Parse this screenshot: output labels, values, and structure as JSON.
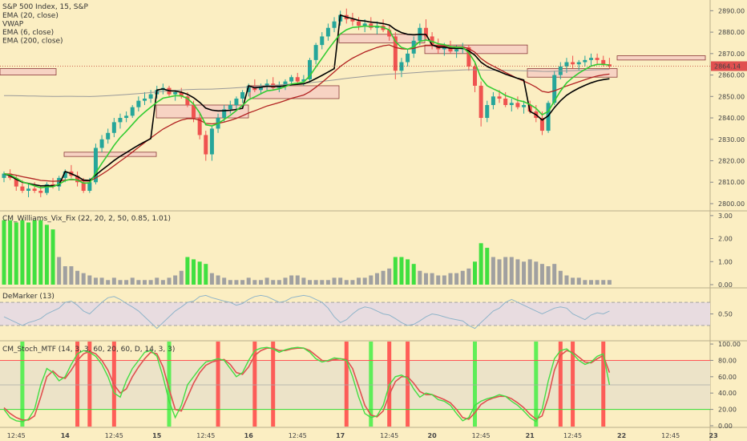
{
  "chart_data": [
    {
      "panel": "price",
      "type": "candlestick",
      "title": "S&P 500 Index, 15, S&P",
      "legend": [
        {
          "label": "EMA (20, close)",
          "color": "#2a9d2a"
        },
        {
          "label": "VWAP",
          "color": "#000000"
        },
        {
          "label": "EMA (6, close)",
          "color": "#3ecf3e"
        },
        {
          "label": "EMA (200, close)",
          "color": "#9a9a9a"
        }
      ],
      "y_ticks": [
        "2890.00",
        "2880.00",
        "2870.00",
        "2860.00",
        "2850.00",
        "2840.00",
        "2830.00",
        "2820.00",
        "2810.00",
        "2800.00"
      ],
      "y_tick_values": [
        2890,
        2880,
        2870,
        2860,
        2850,
        2840,
        2830,
        2820,
        2810,
        2800
      ],
      "ylim": [
        2797,
        2895
      ],
      "last_price": "2864.14",
      "last_price_value": 2864.14,
      "colors": {
        "up": "#26a69a",
        "down": "#ef5350",
        "zone_fill": "#f7d3c3",
        "zone_stroke": "#8a3a3a",
        "ema_slow": "#b22222",
        "ema_fast": "#33cc33",
        "vwap": "#000000",
        "ema200": "#999999"
      },
      "zones": [
        {
          "x0": 0,
          "x1": 70,
          "y0": 2863,
          "y1": 2860
        },
        {
          "x0": 80,
          "x1": 195,
          "y0": 2824,
          "y1": 2822
        },
        {
          "x0": 195,
          "x1": 310,
          "y0": 2846,
          "y1": 2840
        },
        {
          "x0": 312,
          "x1": 423,
          "y0": 2855,
          "y1": 2849
        },
        {
          "x0": 423,
          "x1": 530,
          "y0": 2879,
          "y1": 2875
        },
        {
          "x0": 530,
          "x1": 658,
          "y0": 2874,
          "y1": 2870
        },
        {
          "x0": 658,
          "x1": 770,
          "y0": 2863,
          "y1": 2859
        },
        {
          "x0": 770,
          "x1": 880,
          "y0": 2869,
          "y1": 2867
        }
      ],
      "candles": [
        [
          2812,
          2815,
          2810,
          2814
        ],
        [
          2814,
          2816,
          2811,
          2812
        ],
        [
          2812,
          2813,
          2806,
          2808
        ],
        [
          2808,
          2811,
          2805,
          2806
        ],
        [
          2806,
          2809,
          2803,
          2807
        ],
        [
          2807,
          2810,
          2805,
          2806
        ],
        [
          2806,
          2808,
          2803,
          2805
        ],
        [
          2805,
          2810,
          2804,
          2809
        ],
        [
          2809,
          2812,
          2807,
          2808
        ],
        [
          2808,
          2813,
          2806,
          2812
        ],
        [
          2812,
          2816,
          2810,
          2815
        ],
        [
          2815,
          2818,
          2812,
          2813
        ],
        [
          2813,
          2815,
          2808,
          2810
        ],
        [
          2810,
          2812,
          2805,
          2806
        ],
        [
          2806,
          2812,
          2805,
          2810
        ],
        [
          2810,
          2828,
          2809,
          2826
        ],
        [
          2826,
          2832,
          2824,
          2830
        ],
        [
          2830,
          2835,
          2828,
          2833
        ],
        [
          2833,
          2840,
          2831,
          2838
        ],
        [
          2838,
          2842,
          2835,
          2840
        ],
        [
          2840,
          2843,
          2838,
          2841
        ],
        [
          2841,
          2846,
          2840,
          2845
        ],
        [
          2845,
          2850,
          2843,
          2848
        ],
        [
          2848,
          2852,
          2846,
          2849
        ],
        [
          2849,
          2853,
          2847,
          2851
        ],
        [
          2851,
          2855,
          2849,
          2853
        ],
        [
          2853,
          2856,
          2851,
          2854
        ],
        [
          2854,
          2855,
          2850,
          2851
        ],
        [
          2851,
          2853,
          2848,
          2852
        ],
        [
          2852,
          2854,
          2849,
          2850
        ],
        [
          2850,
          2852,
          2845,
          2846
        ],
        [
          2846,
          2848,
          2838,
          2840
        ],
        [
          2840,
          2842,
          2830,
          2832
        ],
        [
          2832,
          2834,
          2820,
          2823
        ],
        [
          2823,
          2836,
          2820,
          2835
        ],
        [
          2835,
          2842,
          2833,
          2840
        ],
        [
          2840,
          2846,
          2838,
          2844
        ],
        [
          2844,
          2848,
          2842,
          2846
        ],
        [
          2846,
          2850,
          2844,
          2849
        ],
        [
          2849,
          2853,
          2847,
          2852
        ],
        [
          2852,
          2856,
          2850,
          2855
        ],
        [
          2855,
          2858,
          2852,
          2853
        ],
        [
          2853,
          2856,
          2851,
          2855
        ],
        [
          2855,
          2858,
          2853,
          2856
        ],
        [
          2856,
          2859,
          2853,
          2854
        ],
        [
          2854,
          2857,
          2852,
          2855
        ],
        [
          2855,
          2858,
          2853,
          2857
        ],
        [
          2857,
          2860,
          2855,
          2859
        ],
        [
          2859,
          2861,
          2856,
          2857
        ],
        [
          2857,
          2860,
          2855,
          2858
        ],
        [
          2858,
          2868,
          2857,
          2867
        ],
        [
          2867,
          2875,
          2865,
          2874
        ],
        [
          2874,
          2880,
          2872,
          2878
        ],
        [
          2878,
          2884,
          2876,
          2882
        ],
        [
          2882,
          2887,
          2880,
          2885
        ],
        [
          2885,
          2890,
          2883,
          2888
        ],
        [
          2888,
          2891,
          2884,
          2886
        ],
        [
          2886,
          2889,
          2883,
          2885
        ],
        [
          2885,
          2887,
          2881,
          2883
        ],
        [
          2883,
          2886,
          2880,
          2884
        ],
        [
          2884,
          2887,
          2881,
          2882
        ],
        [
          2882,
          2885,
          2879,
          2883
        ],
        [
          2883,
          2886,
          2880,
          2881
        ],
        [
          2881,
          2883,
          2876,
          2878
        ],
        [
          2878,
          2880,
          2858,
          2862
        ],
        [
          2862,
          2868,
          2859,
          2866
        ],
        [
          2866,
          2872,
          2864,
          2870
        ],
        [
          2870,
          2878,
          2868,
          2876
        ],
        [
          2876,
          2884,
          2874,
          2882
        ],
        [
          2882,
          2886,
          2876,
          2878
        ],
        [
          2878,
          2880,
          2872,
          2874
        ],
        [
          2874,
          2877,
          2870,
          2872
        ],
        [
          2872,
          2875,
          2869,
          2873
        ],
        [
          2873,
          2876,
          2870,
          2871
        ],
        [
          2871,
          2874,
          2868,
          2872
        ],
        [
          2872,
          2875,
          2870,
          2873
        ],
        [
          2873,
          2874,
          2862,
          2864
        ],
        [
          2864,
          2866,
          2852,
          2855
        ],
        [
          2855,
          2857,
          2836,
          2840
        ],
        [
          2840,
          2848,
          2838,
          2846
        ],
        [
          2846,
          2852,
          2844,
          2850
        ],
        [
          2850,
          2853,
          2847,
          2849
        ],
        [
          2849,
          2852,
          2845,
          2846
        ],
        [
          2846,
          2849,
          2843,
          2847
        ],
        [
          2847,
          2850,
          2844,
          2845
        ],
        [
          2845,
          2848,
          2842,
          2846
        ],
        [
          2846,
          2848,
          2842,
          2843
        ],
        [
          2843,
          2846,
          2838,
          2840
        ],
        [
          2840,
          2843,
          2832,
          2834
        ],
        [
          2834,
          2848,
          2833,
          2847
        ],
        [
          2847,
          2862,
          2846,
          2860
        ],
        [
          2860,
          2866,
          2858,
          2864
        ],
        [
          2864,
          2868,
          2861,
          2866
        ],
        [
          2866,
          2869,
          2863,
          2865
        ],
        [
          2865,
          2867,
          2862,
          2866
        ],
        [
          2866,
          2869,
          2864,
          2867
        ],
        [
          2867,
          2870,
          2864,
          2868
        ],
        [
          2868,
          2870,
          2865,
          2867
        ],
        [
          2867,
          2869,
          2864,
          2865
        ],
        [
          2865,
          2868,
          2863,
          2864
        ]
      ]
    },
    {
      "panel": "vix_fix",
      "type": "bar",
      "title": "CM_Williams_Vix_Fix (22, 20, 2, 50, 0.85, 1.01)",
      "y_ticks": [
        "3.00",
        "2.00",
        "1.00",
        "0.00"
      ],
      "y_tick_values": [
        3,
        2,
        1,
        0
      ],
      "ylim": [
        0,
        3.1
      ],
      "colors": {
        "normal": "#a0a0a0",
        "signal": "#40e040"
      },
      "values": [
        2.8,
        2.8,
        2.7,
        2.8,
        2.7,
        2.8,
        2.8,
        2.6,
        2.4,
        1.2,
        0.8,
        0.8,
        0.6,
        0.5,
        0.4,
        0.3,
        0.3,
        0.2,
        0.3,
        0.2,
        0.2,
        0.3,
        0.2,
        0.2,
        0.2,
        0.3,
        0.2,
        0.3,
        0.4,
        0.6,
        1.2,
        1.1,
        1.0,
        0.9,
        0.5,
        0.4,
        0.3,
        0.2,
        0.2,
        0.2,
        0.3,
        0.2,
        0.2,
        0.3,
        0.2,
        0.2,
        0.3,
        0.4,
        0.4,
        0.3,
        0.2,
        0.2,
        0.2,
        0.2,
        0.3,
        0.3,
        0.2,
        0.2,
        0.3,
        0.3,
        0.4,
        0.5,
        0.6,
        0.7,
        1.2,
        1.2,
        1.1,
        0.9,
        0.6,
        0.5,
        0.5,
        0.4,
        0.4,
        0.5,
        0.5,
        0.6,
        0.7,
        1.0,
        1.8,
        1.6,
        1.2,
        1.1,
        1.2,
        1.2,
        1.1,
        1.0,
        1.1,
        1.0,
        0.9,
        0.8,
        0.9,
        0.6,
        0.4,
        0.3,
        0.3,
        0.2,
        0.2,
        0.2,
        0.2,
        0.2
      ],
      "signal_from": [
        0,
        1,
        2,
        3,
        4,
        5,
        6,
        7,
        8,
        30,
        31,
        32,
        33,
        64,
        65,
        66,
        67,
        77,
        78,
        79
      ]
    },
    {
      "panel": "demarker",
      "type": "line",
      "title": "DeMarker (13)",
      "y_ticks": [
        "0.50"
      ],
      "y_tick_values": [
        0.5
      ],
      "ylim": [
        0.05,
        0.95
      ],
      "band": [
        0.3,
        0.7
      ],
      "colors": {
        "line": "#8fb4c9",
        "band_fill": "#e8dce0"
      },
      "values": [
        0.45,
        0.4,
        0.35,
        0.3,
        0.35,
        0.38,
        0.42,
        0.5,
        0.55,
        0.6,
        0.7,
        0.72,
        0.65,
        0.55,
        0.5,
        0.6,
        0.7,
        0.78,
        0.8,
        0.75,
        0.68,
        0.62,
        0.55,
        0.45,
        0.35,
        0.25,
        0.35,
        0.45,
        0.55,
        0.62,
        0.7,
        0.72,
        0.8,
        0.82,
        0.78,
        0.75,
        0.72,
        0.7,
        0.65,
        0.68,
        0.75,
        0.8,
        0.82,
        0.8,
        0.75,
        0.7,
        0.72,
        0.78,
        0.8,
        0.82,
        0.8,
        0.75,
        0.7,
        0.6,
        0.45,
        0.35,
        0.4,
        0.5,
        0.58,
        0.62,
        0.6,
        0.55,
        0.5,
        0.48,
        0.42,
        0.35,
        0.3,
        0.32,
        0.38,
        0.45,
        0.5,
        0.48,
        0.45,
        0.42,
        0.4,
        0.38,
        0.3,
        0.25,
        0.35,
        0.45,
        0.55,
        0.6,
        0.7,
        0.75,
        0.7,
        0.65,
        0.6,
        0.55,
        0.5,
        0.55,
        0.6,
        0.62,
        0.6,
        0.5,
        0.45,
        0.4,
        0.48,
        0.52,
        0.5,
        0.55
      ]
    },
    {
      "panel": "stoch",
      "type": "line",
      "title": "CM_Stoch_MTF (14, 3, 3, 60, 20, 60, D, 14, 3, 3)",
      "y_ticks": [
        "100.00",
        "80.00",
        "60.00",
        "40.00",
        "20.00",
        "0.00"
      ],
      "y_tick_values": [
        100,
        80,
        60,
        40,
        20,
        0
      ],
      "ylim": [
        -2,
        104
      ],
      "levels": [
        80,
        20
      ],
      "colors": {
        "k": "#44dd44",
        "d": "#e05050",
        "band_fill": "#ece3c8",
        "level": "#ff5555",
        "midline": "#aaaaaa",
        "signal_up": "#44ee44",
        "signal_down": "#ff4444"
      },
      "k": [
        20,
        10,
        6,
        5,
        8,
        20,
        50,
        70,
        65,
        55,
        60,
        75,
        88,
        92,
        90,
        85,
        75,
        60,
        40,
        35,
        55,
        70,
        80,
        90,
        92,
        85,
        60,
        30,
        10,
        25,
        50,
        60,
        70,
        78,
        80,
        82,
        80,
        70,
        60,
        65,
        80,
        92,
        95,
        96,
        94,
        90,
        93,
        95,
        96,
        95,
        90,
        82,
        78,
        80,
        83,
        82,
        80,
        60,
        35,
        15,
        10,
        12,
        25,
        50,
        60,
        62,
        58,
        45,
        35,
        40,
        38,
        32,
        30,
        25,
        15,
        6,
        10,
        25,
        30,
        33,
        35,
        38,
        36,
        30,
        25,
        18,
        10,
        5,
        20,
        55,
        82,
        92,
        94,
        88,
        80,
        75,
        78,
        85,
        88,
        50
      ],
      "d": [
        22,
        15,
        10,
        7,
        7,
        12,
        35,
        60,
        67,
        60,
        58,
        68,
        80,
        88,
        91,
        88,
        80,
        68,
        50,
        40,
        45,
        60,
        72,
        82,
        90,
        88,
        72,
        45,
        20,
        18,
        35,
        52,
        65,
        74,
        78,
        80,
        81,
        75,
        65,
        63,
        72,
        86,
        92,
        95,
        95,
        92,
        92,
        94,
        95,
        95,
        92,
        86,
        80,
        79,
        81,
        82,
        81,
        70,
        48,
        25,
        13,
        11,
        18,
        38,
        54,
        60,
        60,
        52,
        42,
        38,
        38,
        35,
        32,
        28,
        20,
        10,
        8,
        16,
        26,
        31,
        34,
        36,
        36,
        33,
        28,
        22,
        14,
        8,
        12,
        35,
        68,
        86,
        92,
        90,
        84,
        78,
        77,
        82,
        86,
        65
      ],
      "signals": [
        {
          "i": 3,
          "type": "up"
        },
        {
          "i": 12,
          "type": "down"
        },
        {
          "i": 14,
          "type": "down"
        },
        {
          "i": 18,
          "type": "down"
        },
        {
          "i": 27,
          "type": "up"
        },
        {
          "i": 35,
          "type": "down"
        },
        {
          "i": 41,
          "type": "down"
        },
        {
          "i": 44,
          "type": "down"
        },
        {
          "i": 56,
          "type": "down"
        },
        {
          "i": 60,
          "type": "up"
        },
        {
          "i": 63,
          "type": "down"
        },
        {
          "i": 66,
          "type": "down"
        },
        {
          "i": 77,
          "type": "up"
        },
        {
          "i": 87,
          "type": "up"
        },
        {
          "i": 91,
          "type": "down"
        },
        {
          "i": 93,
          "type": "down"
        },
        {
          "i": 98,
          "type": "down"
        }
      ]
    }
  ],
  "x_axis": {
    "labels": [
      "12:45",
      "14",
      "12:45",
      "15",
      "12:45",
      "16",
      "12:45",
      "17",
      "12:45",
      "20",
      "12:45",
      "21",
      "12:45",
      "22",
      "12:45",
      "23"
    ],
    "label_bar_positions": [
      2,
      10,
      18,
      25,
      33,
      40,
      48,
      55,
      63,
      70,
      78,
      86,
      93,
      101,
      109,
      116
    ]
  }
}
